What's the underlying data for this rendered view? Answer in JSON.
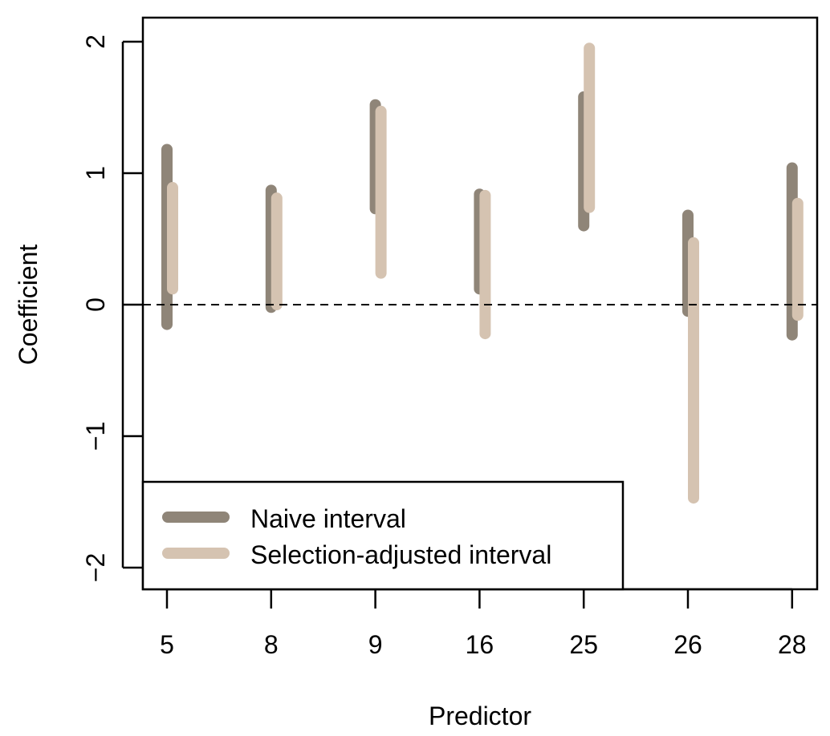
{
  "chart_data": {
    "type": "interval",
    "xlabel": "Predictor",
    "ylabel": "Coefficient",
    "categories": [
      "5",
      "8",
      "9",
      "16",
      "25",
      "26",
      "28"
    ],
    "yticks": [
      "2",
      "1",
      "0",
      "-1",
      "-2"
    ],
    "ylim": [
      -2.15,
      2.15
    ],
    "reference_line": {
      "y": 0,
      "style": "dashed"
    },
    "grid": false,
    "legend_position": "bottom-left",
    "series": [
      {
        "name": "Naive interval",
        "color": "#8f8578",
        "intervals": [
          [
            -0.15,
            1.18
          ],
          [
            -0.02,
            0.87
          ],
          [
            0.73,
            1.52
          ],
          [
            0.12,
            0.84
          ],
          [
            0.6,
            1.58
          ],
          [
            -0.05,
            0.68
          ],
          [
            -0.23,
            1.04
          ]
        ]
      },
      {
        "name": "Selection-adjusted interval",
        "color": "#d5c3b1",
        "intervals": [
          [
            0.12,
            0.89
          ],
          [
            0.0,
            0.81
          ],
          [
            0.24,
            1.47
          ],
          [
            -0.22,
            0.83
          ],
          [
            0.74,
            1.95
          ],
          [
            -1.47,
            0.47
          ],
          [
            -0.08,
            0.77
          ]
        ]
      }
    ]
  }
}
